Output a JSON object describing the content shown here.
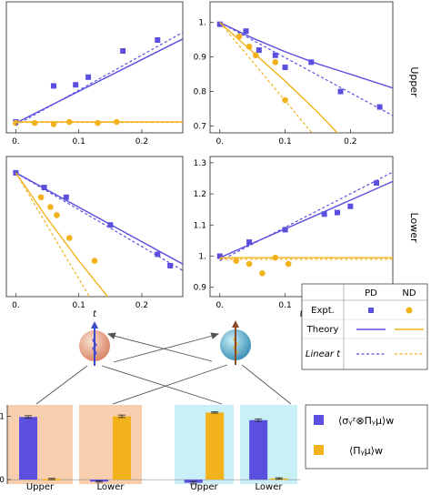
{
  "colors": {
    "pd": "#5b4fe0",
    "nd": "#f2b21c",
    "upper_bg": "#f8cfae",
    "lower_bg": "#c9f0f6",
    "axis": "#222222"
  },
  "legend": {
    "col_pd": "PD",
    "col_nd": "ND",
    "row_expt": "Expt.",
    "row_theory": "Theory",
    "row_linear": "Linear t"
  },
  "row_labels": {
    "upper": "Upper",
    "lower": "Lower"
  },
  "bar_legend": {
    "pd_label": "⟨σᵧᶻ⊗Πᵧμ⟩w",
    "nd_label": "⟨Πᵧμ⟩w"
  },
  "icons": [
    "spin-sphere-orange-icon",
    "spin-sphere-cyan-icon",
    "swap-arrows-icon"
  ],
  "chart_data": [
    {
      "id": "upper-left",
      "type": "scatter",
      "xlabel": "",
      "xlim": [
        -0.015,
        0.265
      ],
      "ylim": [
        0.7,
        1.3
      ],
      "xticks": [
        {
          "v": 0,
          "t": "0."
        },
        {
          "v": 0.1,
          "t": "0.1"
        },
        {
          "v": 0.2,
          "t": "0.2"
        }
      ],
      "yticks": [],
      "series": [
        {
          "kind": "points",
          "color": "pd",
          "x": [
            0,
            0.06,
            0.095,
            0.115,
            0.17,
            0.225
          ],
          "y": [
            0.75,
            0.915,
            0.92,
            0.955,
            1.075,
            1.125
          ]
        },
        {
          "kind": "points",
          "color": "nd",
          "x": [
            0,
            0.03,
            0.06,
            0.085,
            0.13,
            0.16
          ],
          "y": [
            0.745,
            0.745,
            0.74,
            0.75,
            0.745,
            0.75
          ]
        },
        {
          "kind": "solid",
          "color": "pd",
          "x": [
            0,
            0.265
          ],
          "y": [
            0.745,
            1.13
          ]
        },
        {
          "kind": "dashed",
          "color": "pd",
          "x": [
            0,
            0.265
          ],
          "y": [
            0.735,
            1.16
          ]
        },
        {
          "kind": "solid",
          "color": "nd",
          "x": [
            0,
            0.265
          ],
          "y": [
            0.75,
            0.75
          ]
        },
        {
          "kind": "dashed",
          "color": "nd",
          "x": [
            0,
            0.265
          ],
          "y": [
            0.748,
            0.748
          ]
        }
      ]
    },
    {
      "id": "upper-right",
      "type": "scatter",
      "xlabel": "",
      "xlim": [
        -0.015,
        0.265
      ],
      "ylim": [
        0.68,
        1.06
      ],
      "xticks": [
        {
          "v": 0,
          "t": "0."
        },
        {
          "v": 0.1,
          "t": "0.1"
        },
        {
          "v": 0.2,
          "t": "0.2"
        }
      ],
      "yticks": [
        {
          "v": 0.7,
          "t": "0.7"
        },
        {
          "v": 0.8,
          "t": "0.8"
        },
        {
          "v": 0.9,
          "t": "0.9"
        },
        {
          "v": 1.0,
          "t": "1."
        }
      ],
      "series": [
        {
          "kind": "points",
          "color": "pd",
          "x": [
            0,
            0.04,
            0.06,
            0.085,
            0.1,
            0.14,
            0.185,
            0.245
          ],
          "y": [
            0.995,
            0.975,
            0.92,
            0.905,
            0.87,
            0.885,
            0.8,
            0.755
          ]
        },
        {
          "kind": "points",
          "color": "nd",
          "x": [
            0.03,
            0.045,
            0.055,
            0.085,
            0.1
          ],
          "y": [
            0.96,
            0.93,
            0.905,
            0.885,
            0.775
          ]
        },
        {
          "kind": "solid",
          "color": "pd",
          "x": [
            0,
            0.05,
            0.1,
            0.15,
            0.2,
            0.265
          ],
          "y": [
            1.0,
            0.955,
            0.915,
            0.88,
            0.85,
            0.81
          ]
        },
        {
          "kind": "dashed",
          "color": "pd",
          "x": [
            0,
            0.265
          ],
          "y": [
            1.0,
            0.73
          ]
        },
        {
          "kind": "solid",
          "color": "nd",
          "x": [
            0,
            0.05,
            0.1,
            0.15,
            0.19
          ],
          "y": [
            1.0,
            0.915,
            0.83,
            0.74,
            0.66
          ]
        },
        {
          "kind": "dashed",
          "color": "nd",
          "x": [
            0,
            0.15
          ],
          "y": [
            1.0,
            0.66
          ]
        }
      ]
    },
    {
      "id": "lower-left",
      "type": "scatter",
      "xlabel": "t",
      "xlim": [
        -0.015,
        0.265
      ],
      "ylim": [
        0.62,
        1.05
      ],
      "xticks": [
        {
          "v": 0,
          "t": "0."
        },
        {
          "v": 0.1,
          "t": "0.1"
        },
        {
          "v": 0.2,
          "t": "0.2"
        }
      ],
      "yticks": [],
      "series": [
        {
          "kind": "points",
          "color": "pd",
          "x": [
            0,
            0.045,
            0.08,
            0.15,
            0.225,
            0.245
          ],
          "y": [
            1.0,
            0.955,
            0.925,
            0.84,
            0.75,
            0.715
          ]
        },
        {
          "kind": "points",
          "color": "nd",
          "x": [
            0.04,
            0.055,
            0.065,
            0.085,
            0.125
          ],
          "y": [
            0.925,
            0.895,
            0.87,
            0.8,
            0.73
          ]
        },
        {
          "kind": "solid",
          "color": "pd",
          "x": [
            0,
            0.265
          ],
          "y": [
            1.0,
            0.72
          ]
        },
        {
          "kind": "dashed",
          "color": "pd",
          "x": [
            0,
            0.265
          ],
          "y": [
            1.0,
            0.7
          ]
        },
        {
          "kind": "solid",
          "color": "nd",
          "x": [
            0,
            0.05,
            0.1,
            0.15
          ],
          "y": [
            1.0,
            0.86,
            0.73,
            0.61
          ]
        },
        {
          "kind": "dashed",
          "color": "nd",
          "x": [
            0,
            0.12
          ],
          "y": [
            1.0,
            0.61
          ]
        }
      ]
    },
    {
      "id": "lower-right",
      "type": "scatter",
      "xlabel": "t",
      "xlim": [
        -0.015,
        0.265
      ],
      "ylim": [
        0.87,
        1.32
      ],
      "xticks": [
        {
          "v": 0,
          "t": "0."
        },
        {
          "v": 0.1,
          "t": "0.1"
        },
        {
          "v": 0.2,
          "t": "0.2"
        }
      ],
      "yticks": [
        {
          "v": 0.9,
          "t": "0.9"
        },
        {
          "v": 1.0,
          "t": "1."
        },
        {
          "v": 1.1,
          "t": "1.1"
        },
        {
          "v": 1.2,
          "t": "1.2"
        },
        {
          "v": 1.3,
          "t": "1.3"
        }
      ],
      "series": [
        {
          "kind": "points",
          "color": "pd",
          "x": [
            0,
            0.045,
            0.1,
            0.16,
            0.18,
            0.2,
            0.24
          ],
          "y": [
            1.0,
            1.045,
            1.085,
            1.135,
            1.14,
            1.16,
            1.235
          ]
        },
        {
          "kind": "points",
          "color": "nd",
          "x": [
            0.025,
            0.045,
            0.065,
            0.085,
            0.105
          ],
          "y": [
            0.985,
            0.975,
            0.945,
            0.995,
            0.975
          ]
        },
        {
          "kind": "solid",
          "color": "pd",
          "x": [
            0,
            0.265
          ],
          "y": [
            0.995,
            1.24
          ]
        },
        {
          "kind": "dashed",
          "color": "pd",
          "x": [
            0,
            0.265
          ],
          "y": [
            0.985,
            1.27
          ]
        },
        {
          "kind": "solid",
          "color": "nd",
          "x": [
            0,
            0.265
          ],
          "y": [
            0.995,
            0.995
          ]
        },
        {
          "kind": "dashed",
          "color": "nd",
          "x": [
            0,
            0.265
          ],
          "y": [
            0.99,
            0.99
          ]
        }
      ]
    },
    {
      "id": "bars",
      "type": "bar",
      "ylim": [
        -0.07,
        1.18
      ],
      "yticks": [
        {
          "v": 0,
          "t": "0"
        },
        {
          "v": 1,
          "t": "1"
        }
      ],
      "categories": [
        "Upper",
        "Lower",
        "Upper",
        "Lower"
      ],
      "series": [
        {
          "name": "PD",
          "color": "pd",
          "values": [
            0.99,
            -0.03,
            -0.05,
            0.94
          ],
          "err": [
            0.02,
            0.01,
            0.02,
            0.02
          ]
        },
        {
          "name": "ND",
          "color": "nd",
          "values": [
            0.01,
            1.0,
            1.06,
            0.02
          ],
          "err": [
            0.01,
            0.02,
            0.01,
            0.01
          ]
        }
      ]
    }
  ]
}
